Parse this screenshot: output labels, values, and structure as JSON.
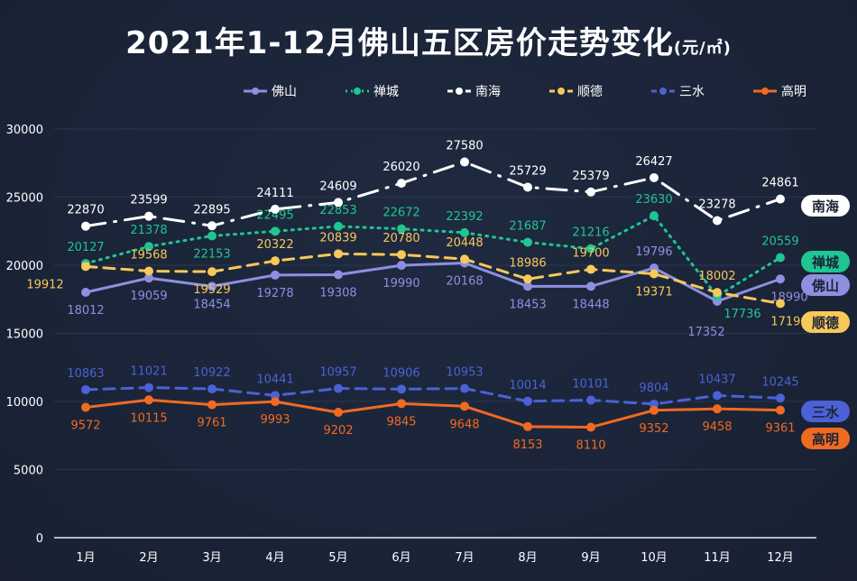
{
  "chart_data": {
    "type": "line",
    "title": "2021年1-12月佛山五区房价走势变化",
    "unit": "(元/㎡)",
    "categories": [
      "1月",
      "2月",
      "3月",
      "4月",
      "5月",
      "6月",
      "7月",
      "8月",
      "9月",
      "10月",
      "11月",
      "12月"
    ],
    "ylim": [
      0,
      30000
    ],
    "yticks": [
      0,
      5000,
      10000,
      15000,
      20000,
      25000,
      30000
    ],
    "grid": true,
    "legend": "top",
    "series": [
      {
        "name": "佛山",
        "color": "#8e8fe0",
        "style": "solid",
        "values": [
          18012,
          19059,
          18454,
          19278,
          19308,
          19990,
          20168,
          18453,
          18448,
          19796,
          17352,
          18990
        ]
      },
      {
        "name": "禅城",
        "color": "#1fc592",
        "style": "dotted",
        "values": [
          20127,
          21378,
          22153,
          22495,
          22853,
          22672,
          22392,
          21687,
          21216,
          23630,
          17736,
          20559
        ]
      },
      {
        "name": "南海",
        "color": "#ffffff",
        "style": "dashdot",
        "values": [
          22870,
          23599,
          22895,
          24111,
          24609,
          26020,
          27580,
          25729,
          25379,
          26427,
          23278,
          24861
        ]
      },
      {
        "name": "顺德",
        "color": "#f7c85a",
        "style": "dashed",
        "values": [
          19912,
          19568,
          19529,
          20322,
          20839,
          20780,
          20448,
          18986,
          19700,
          19371,
          18002,
          17190
        ]
      },
      {
        "name": "三水",
        "color": "#4a62d6",
        "style": "dashed",
        "values": [
          10863,
          11021,
          10922,
          10441,
          10957,
          10906,
          10953,
          10014,
          10101,
          9804,
          10437,
          10245
        ]
      },
      {
        "name": "高明",
        "color": "#f06a22",
        "style": "solid",
        "values": [
          9572,
          10115,
          9761,
          9993,
          9202,
          9845,
          9648,
          8153,
          8110,
          9352,
          9458,
          9361
        ]
      }
    ]
  }
}
